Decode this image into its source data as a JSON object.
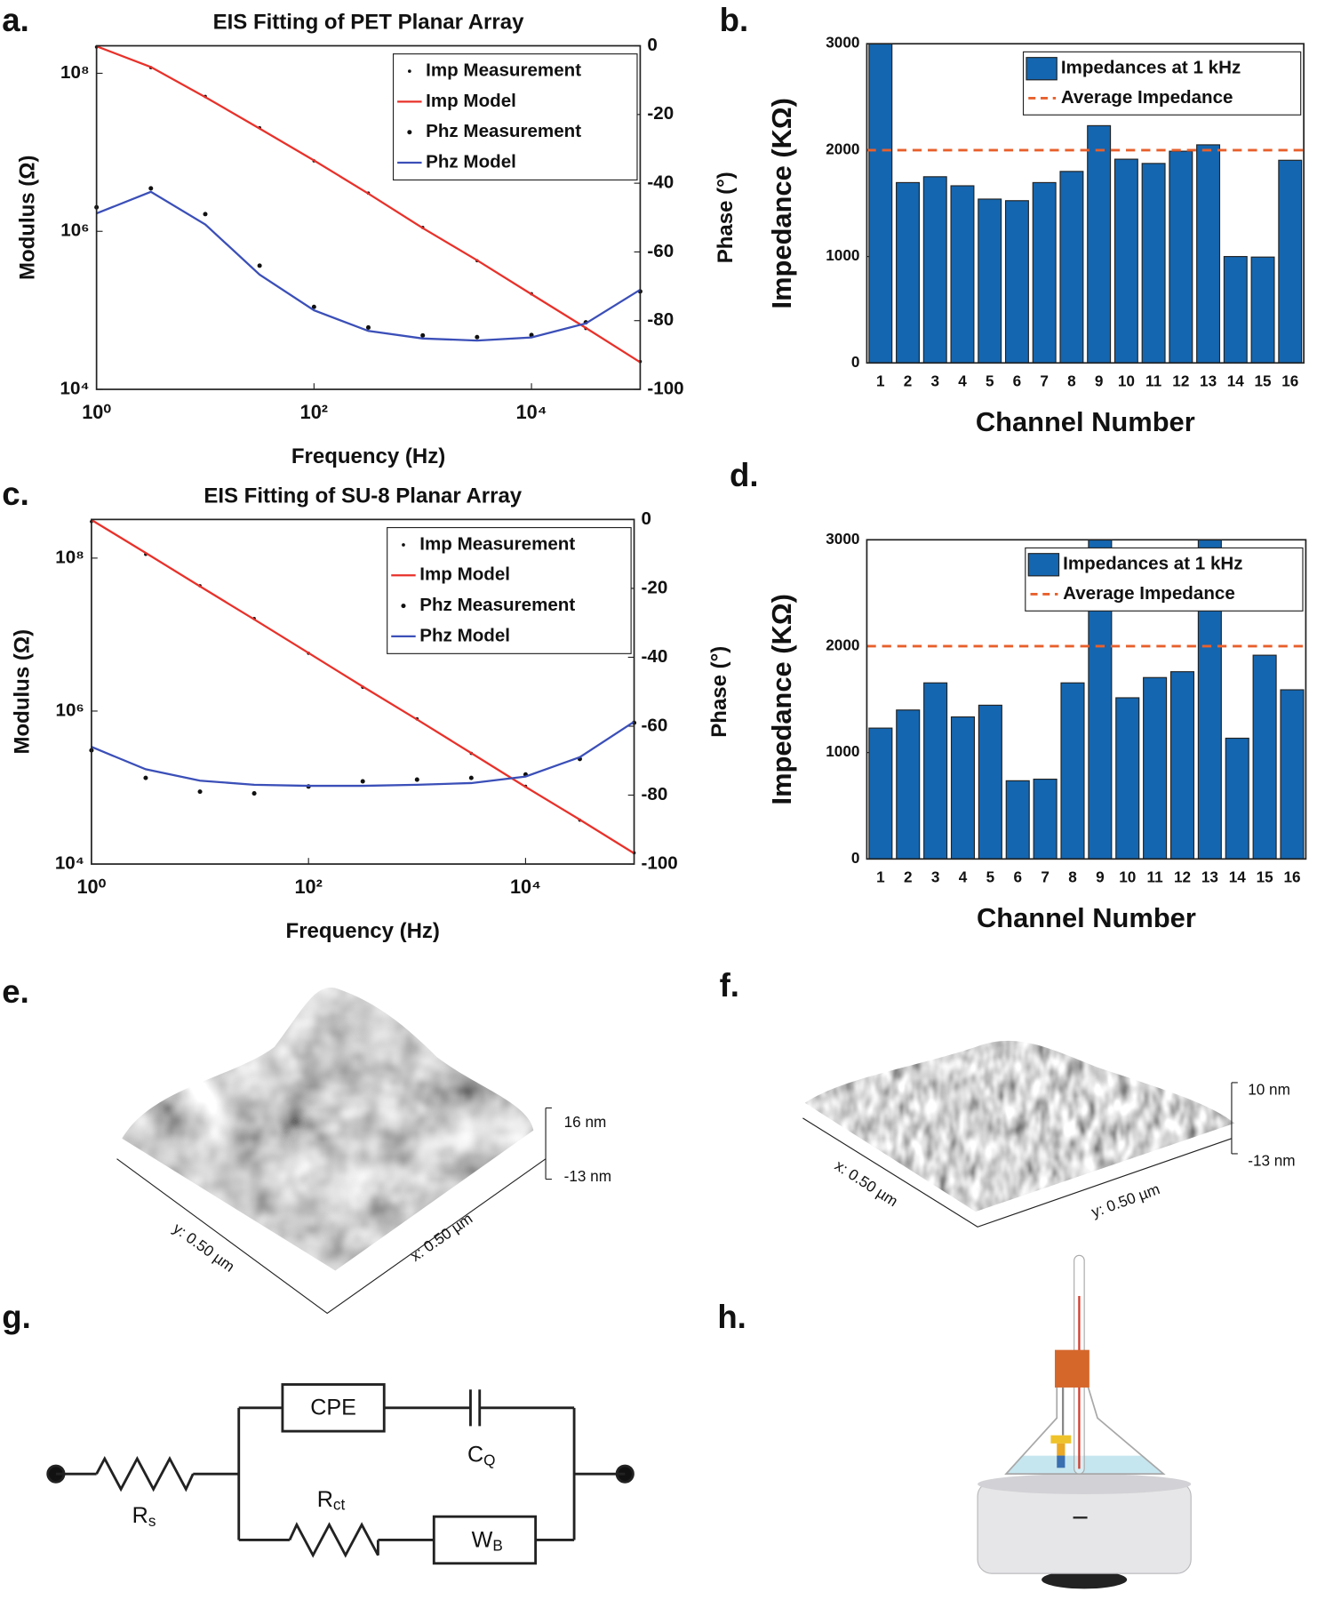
{
  "panel_labels": [
    "a.",
    "b.",
    "c.",
    "d.",
    "e.",
    "f.",
    "g.",
    "h."
  ],
  "chart_data": [
    {
      "type": "line",
      "title": "EIS Fitting of PET Planar Array",
      "xlabel": "Frequency (Hz)",
      "ylabel": "Modulus (Ω)",
      "y2label": "Phase (°)",
      "xscale": "log",
      "yscale": "log",
      "x": [
        1,
        3.16,
        10,
        31.6,
        100,
        316,
        1000,
        3160,
        10000,
        31600,
        100000
      ],
      "xlim": [
        1,
        100000
      ],
      "xticks": [
        {
          "value": 1,
          "label": "10⁰"
        },
        {
          "value": 100,
          "label": "10²"
        },
        {
          "value": 10000,
          "label": "10⁴"
        }
      ],
      "ylim": [
        10000,
        223000000
      ],
      "yticks": [
        {
          "value": 10000,
          "label": "10⁴"
        },
        {
          "value": 1000000,
          "label": "10⁶"
        },
        {
          "value": 100000000,
          "label": "10⁸"
        }
      ],
      "y2lim": [
        -100,
        0
      ],
      "y2ticks": [
        0,
        -20,
        -40,
        -60,
        -80,
        -100
      ],
      "legend": "upper right",
      "series": [
        {
          "name": "Imp Measurement",
          "color": "#111111",
          "style": "dots",
          "values": [
            215000000,
            118000000,
            51000000,
            20500000,
            7800000,
            3050000,
            1120000,
            425000,
            162000,
            59000,
            22500
          ]
        },
        {
          "name": "Imp Model",
          "color": "#e8312a",
          "style": "line",
          "values": [
            220000000,
            120000000,
            50000000,
            20000000,
            7900000,
            3000000,
            1100000,
            430000,
            160000,
            60000,
            22000
          ]
        },
        {
          "name": "Phz Measurement",
          "color": "#111111",
          "style": "stars",
          "axis": "y2",
          "values": [
            -47,
            -41.5,
            -49,
            -64,
            -76,
            -82,
            -84.3,
            -84.8,
            -84.2,
            -80.5,
            -71.5
          ]
        },
        {
          "name": "Phz Model",
          "color": "#3b4fb8",
          "style": "line",
          "axis": "y2",
          "values": [
            -48.8,
            -42.5,
            -52,
            -66.6,
            -77,
            -83,
            -85.2,
            -85.8,
            -84.9,
            -80.8,
            -71
          ]
        }
      ]
    },
    {
      "type": "bar",
      "xlabel": "Channel Number",
      "ylabel": "Impedance (KΩ)",
      "categories": [
        "1",
        "2",
        "3",
        "4",
        "5",
        "6",
        "7",
        "8",
        "9",
        "10",
        "11",
        "12",
        "13",
        "14",
        "15",
        "16"
      ],
      "ylim": [
        0,
        3000
      ],
      "yticks": [
        0,
        1000,
        2000,
        3000
      ],
      "legend": "upper right",
      "series": [
        {
          "name": "Impedances at 1 kHz",
          "color": "#1466b0",
          "style": "bar",
          "values": [
            3000,
            1695,
            1750,
            1665,
            1540,
            1525,
            1695,
            1800,
            2230,
            1915,
            1875,
            1990,
            2050,
            1000,
            995,
            1905
          ]
        },
        {
          "name": "Average Impedance",
          "color": "#e8602c",
          "style": "dashed",
          "value": 2000
        }
      ]
    },
    {
      "type": "line",
      "title": "EIS Fitting of SU-8 Planar Array",
      "xlabel": "Frequency (Hz)",
      "ylabel": "Modulus (Ω)",
      "y2label": "Phase (°)",
      "xscale": "log",
      "yscale": "log",
      "x": [
        1,
        3.16,
        10,
        31.6,
        100,
        316,
        1000,
        3160,
        10000,
        31600,
        100000
      ],
      "xlim": [
        1,
        100000
      ],
      "xticks": [
        {
          "value": 1,
          "label": "10⁰"
        },
        {
          "value": 100,
          "label": "10²"
        },
        {
          "value": 10000,
          "label": "10⁴"
        }
      ],
      "ylim": [
        10000,
        320000000
      ],
      "yticks": [
        {
          "value": 10000,
          "label": "10⁴"
        },
        {
          "value": 1000000,
          "label": "10⁶"
        },
        {
          "value": 100000000,
          "label": "10⁸"
        }
      ],
      "y2lim": [
        -100,
        0
      ],
      "y2ticks": [
        0,
        -20,
        -40,
        -60,
        -80,
        -100
      ],
      "legend": "upper right",
      "series": [
        {
          "name": "Imp Measurement",
          "color": "#111111",
          "style": "dots",
          "values": [
            300000000,
            112000000,
            43500000,
            16200000,
            5700000,
            2050000,
            790000,
            280000,
            104000,
            37500,
            14000
          ]
        },
        {
          "name": "Imp Model",
          "color": "#e8312a",
          "style": "line",
          "values": [
            316000000,
            117000000,
            42700000,
            15800000,
            5750000,
            2090000,
            776000,
            282000,
            102000,
            38000,
            13800
          ]
        },
        {
          "name": "Phz Measurement",
          "color": "#111111",
          "style": "stars",
          "axis": "y2",
          "values": [
            -67,
            -75,
            -79,
            -79.5,
            -77.5,
            -76,
            -75.5,
            -75,
            -74,
            -69.5,
            -59
          ]
        },
        {
          "name": "Phz Model",
          "color": "#3b4fb8",
          "style": "line",
          "axis": "y2",
          "values": [
            -66,
            -72.5,
            -75.8,
            -77,
            -77.3,
            -77.3,
            -77,
            -76.5,
            -74.6,
            -69,
            -58.7
          ]
        }
      ]
    },
    {
      "type": "bar",
      "xlabel": "Channel Number",
      "ylabel": "Impedance (KΩ)",
      "categories": [
        "1",
        "2",
        "3",
        "4",
        "5",
        "6",
        "7",
        "8",
        "9",
        "10",
        "11",
        "12",
        "13",
        "14",
        "15",
        "16"
      ],
      "ylim": [
        0,
        3000
      ],
      "yticks": [
        0,
        1000,
        2000,
        3000
      ],
      "legend": "upper right",
      "series": [
        {
          "name": "Impedances at 1 kHz",
          "color": "#1466b0",
          "style": "bar",
          "values": [
            1230,
            1400,
            1655,
            1335,
            1445,
            735,
            750,
            1655,
            3000,
            1515,
            1705,
            1760,
            3000,
            1135,
            1915,
            1590
          ]
        },
        {
          "name": "Average Impedance",
          "color": "#e8602c",
          "style": "dashed",
          "value": 2000
        }
      ]
    }
  ],
  "afm": [
    {
      "z_max": "16 nm",
      "z_min": "-13 nm",
      "x_label": "x: 0.50 µm",
      "y_label": "y: 0.50 µm"
    },
    {
      "z_max": "10 nm",
      "z_min": "-13 nm",
      "x_label": "x: 0.50 µm",
      "y_label": "y: 0.50 µm"
    }
  ],
  "circuit": {
    "components": [
      {
        "label": "R",
        "sub": "s"
      },
      {
        "label": "CPE"
      },
      {
        "label": "C",
        "sub": "Q"
      },
      {
        "label": "R",
        "sub": "ct"
      },
      {
        "label": "W",
        "sub": "B"
      }
    ]
  }
}
